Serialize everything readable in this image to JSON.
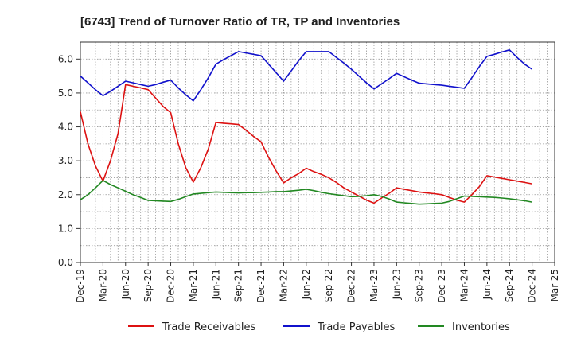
{
  "chart_data": {
    "type": "line",
    "title": "[6743]  Trend of Turnover Ratio of TR, TP and Inventories",
    "xlabel": "",
    "ylabel": "",
    "ylim": [
      0,
      6.5
    ],
    "yticks": [
      "0.0",
      "1.0",
      "2.0",
      "3.0",
      "4.0",
      "5.0",
      "6.0"
    ],
    "x_tick_labels": [
      "Dec-19",
      "Mar-20",
      "Jun-20",
      "Sep-20",
      "Dec-20",
      "Mar-21",
      "Jun-21",
      "Sep-21",
      "Dec-21",
      "Mar-22",
      "Jun-22",
      "Sep-22",
      "Dec-22",
      "Mar-23",
      "Jun-23",
      "Sep-23",
      "Dec-23",
      "Mar-24",
      "Jun-24",
      "Sep-24",
      "Dec-24",
      "Mar-25"
    ],
    "x": [
      "Dec-19",
      "Jan-20",
      "Feb-20",
      "Mar-20",
      "Apr-20",
      "May-20",
      "Jun-20",
      "Jul-20",
      "Aug-20",
      "Sep-20",
      "Oct-20",
      "Nov-20",
      "Dec-20",
      "Jan-21",
      "Feb-21",
      "Mar-21",
      "Apr-21",
      "May-21",
      "Jun-21",
      "Jul-21",
      "Aug-21",
      "Sep-21",
      "Oct-21",
      "Nov-21",
      "Dec-21",
      "Jan-22",
      "Feb-22",
      "Mar-22",
      "Apr-22",
      "May-22",
      "Jun-22",
      "Jul-22",
      "Aug-22",
      "Sep-22",
      "Oct-22",
      "Nov-22",
      "Dec-22",
      "Jan-23",
      "Feb-23",
      "Mar-23",
      "Apr-23",
      "May-23",
      "Jun-23",
      "Jul-23",
      "Aug-23",
      "Sep-23",
      "Oct-23",
      "Nov-23",
      "Dec-23",
      "Jan-24",
      "Feb-24",
      "Mar-24",
      "Apr-24",
      "May-24",
      "Jun-24",
      "Jul-24",
      "Aug-24",
      "Sep-24",
      "Oct-24",
      "Nov-24",
      "Dec-24"
    ],
    "grid": true,
    "legend_position": "bottom",
    "series": [
      {
        "name": "Trade Receivables",
        "color": "#dd1111",
        "values": [
          4.45,
          3.5,
          2.85,
          2.4,
          3.0,
          3.8,
          5.25,
          5.2,
          5.15,
          5.1,
          4.85,
          4.6,
          4.42,
          3.5,
          2.8,
          2.37,
          2.8,
          3.35,
          4.13,
          4.11,
          4.09,
          4.07,
          3.9,
          3.72,
          3.56,
          3.1,
          2.7,
          2.35,
          2.5,
          2.62,
          2.78,
          2.68,
          2.6,
          2.5,
          2.36,
          2.2,
          2.08,
          1.96,
          1.84,
          1.75,
          1.9,
          2.04,
          2.2,
          2.16,
          2.12,
          2.08,
          2.05,
          2.03,
          2.0,
          1.92,
          1.84,
          1.78,
          2.0,
          2.24,
          2.56,
          2.52,
          2.48,
          2.44,
          2.4,
          2.36,
          2.32
        ]
      },
      {
        "name": "Trade Payables",
        "color": "#1111cc",
        "values": [
          5.5,
          5.3,
          5.1,
          4.92,
          5.05,
          5.2,
          5.35,
          5.3,
          5.25,
          5.2,
          5.25,
          5.32,
          5.38,
          5.15,
          4.95,
          4.77,
          5.1,
          5.45,
          5.85,
          5.98,
          6.1,
          6.22,
          6.18,
          6.14,
          6.1,
          5.85,
          5.6,
          5.35,
          5.65,
          5.95,
          6.22,
          6.22,
          6.22,
          6.22,
          6.05,
          5.88,
          5.7,
          5.5,
          5.3,
          5.12,
          5.27,
          5.42,
          5.58,
          5.48,
          5.38,
          5.29,
          5.27,
          5.25,
          5.23,
          5.2,
          5.17,
          5.14,
          5.45,
          5.78,
          6.08,
          6.14,
          6.21,
          6.27,
          6.05,
          5.85,
          5.7
        ]
      },
      {
        "name": "Inventories",
        "color": "#228822",
        "values": [
          1.85,
          2.0,
          2.2,
          2.42,
          2.3,
          2.2,
          2.1,
          2.0,
          1.92,
          1.83,
          1.82,
          1.81,
          1.8,
          1.86,
          1.94,
          2.02,
          2.04,
          2.06,
          2.08,
          2.07,
          2.06,
          2.05,
          2.06,
          2.06,
          2.07,
          2.08,
          2.09,
          2.09,
          2.11,
          2.13,
          2.16,
          2.12,
          2.07,
          2.03,
          2.0,
          1.97,
          1.94,
          1.95,
          1.97,
          2.0,
          1.95,
          1.87,
          1.78,
          1.76,
          1.74,
          1.72,
          1.73,
          1.74,
          1.75,
          1.8,
          1.88,
          1.96,
          1.95,
          1.94,
          1.93,
          1.92,
          1.9,
          1.88,
          1.85,
          1.82,
          1.78
        ]
      }
    ]
  }
}
